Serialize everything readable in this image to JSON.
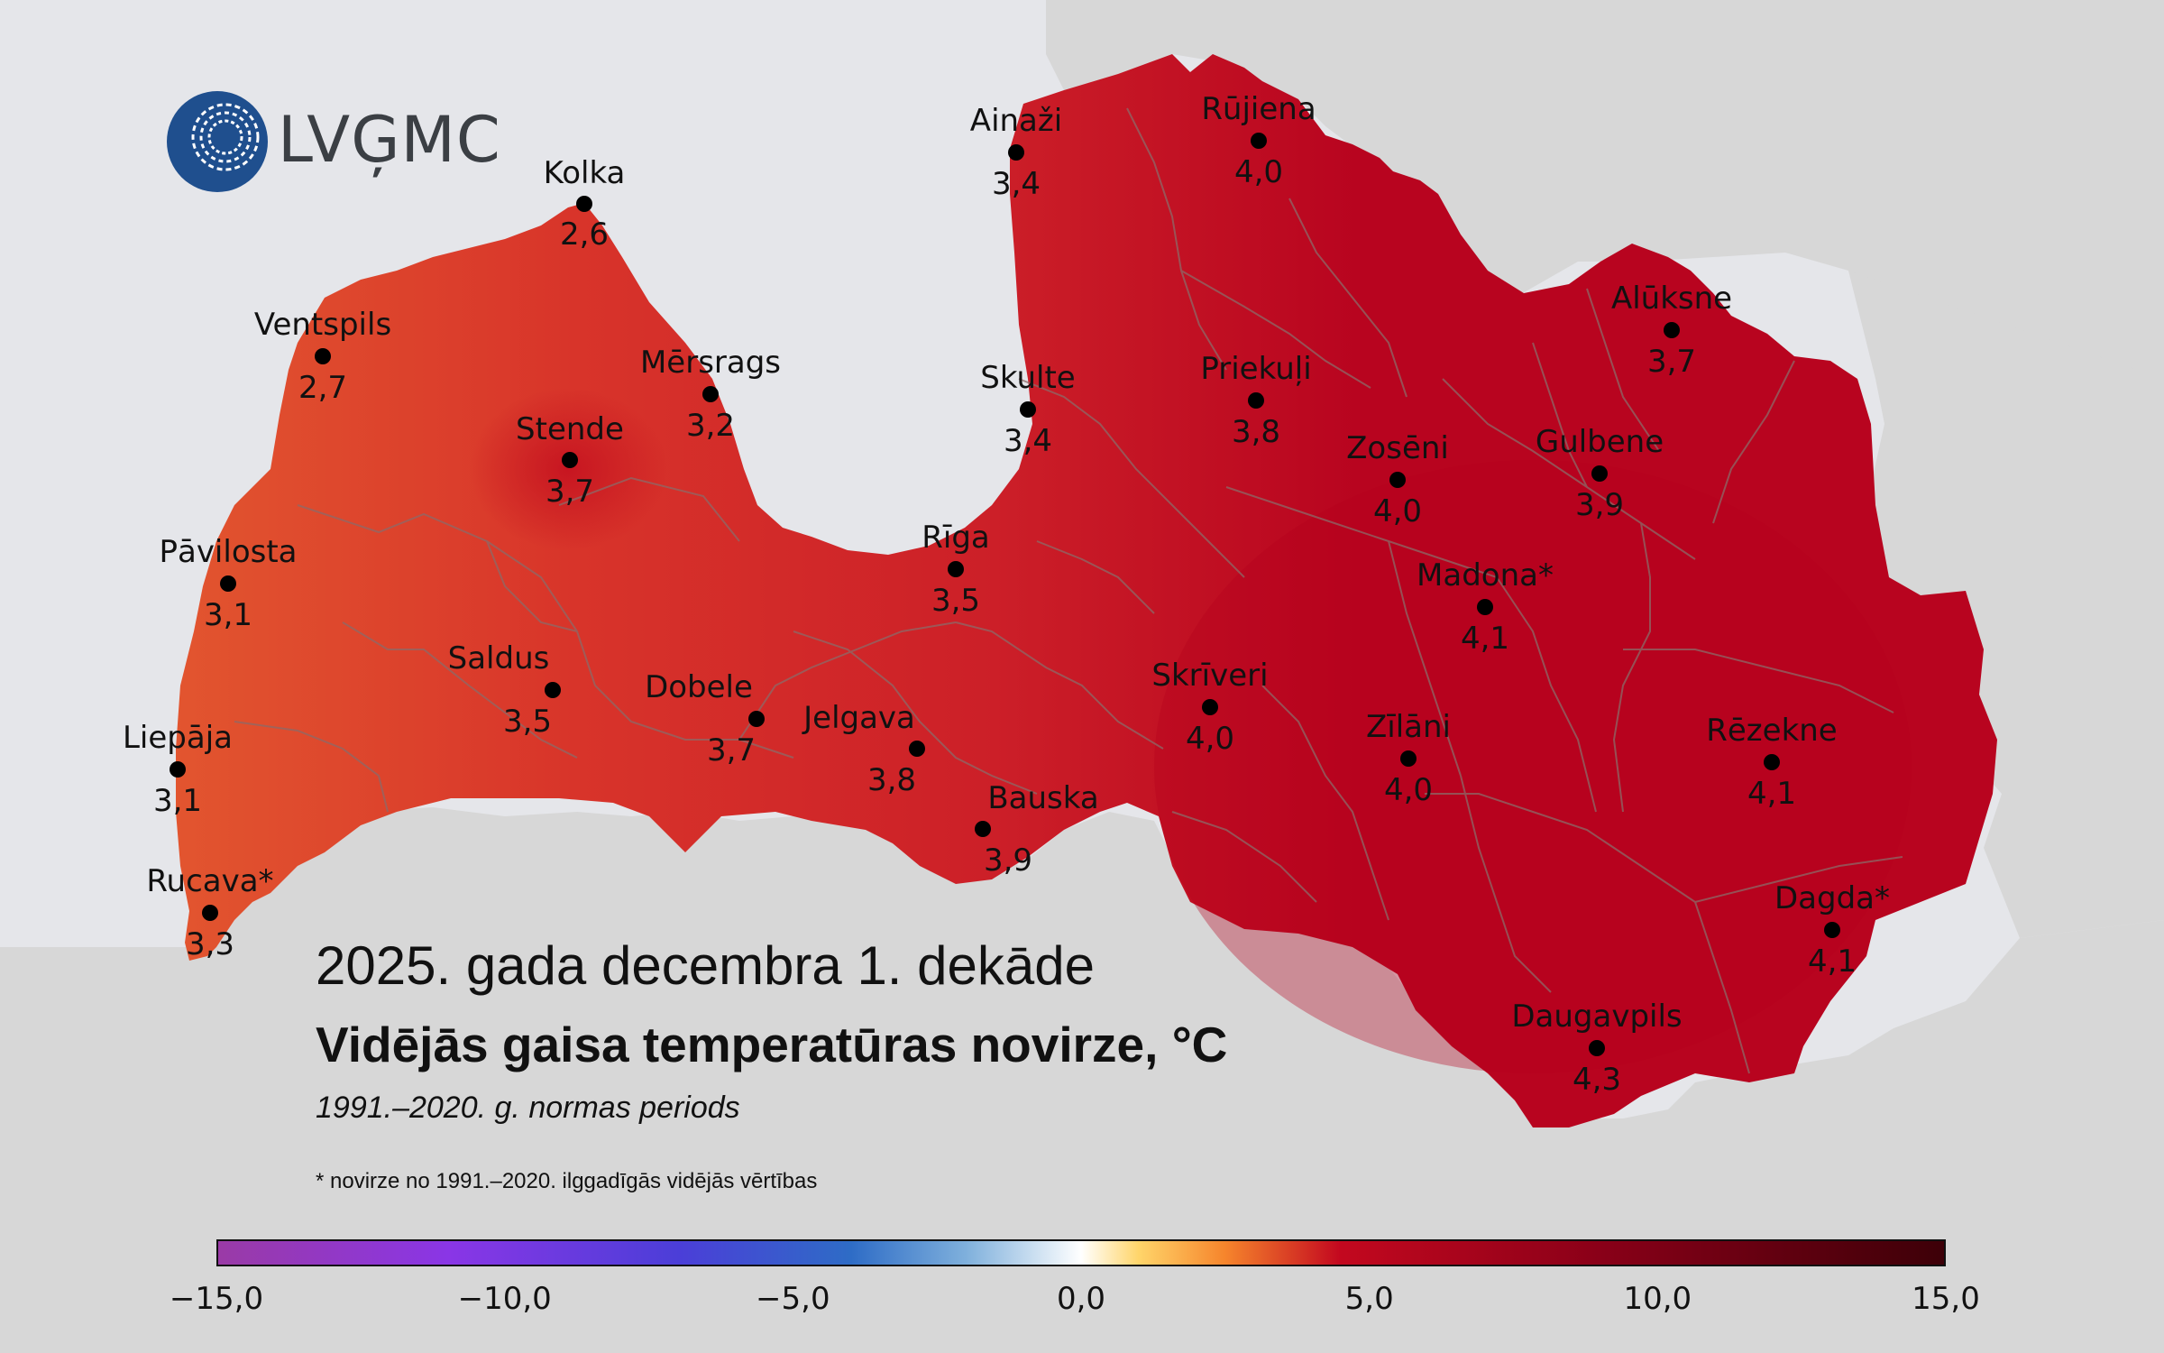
{
  "logo": {
    "text": "LVĢMC"
  },
  "title": {
    "line1": "2025. gada decembra 1. dekāde",
    "line2": "Vidējās gaisa temperatūras novirze, °C",
    "subtitle": "1991.–2020. g. normas periods",
    "footnote": "* novirze no 1991.–2020. ilggadīgās vidējās vērtības"
  },
  "colors": {
    "sea": "#e5e6ea",
    "neighbour_land": "#d7d7d7",
    "west_coast": "#e2552f",
    "kurzeme": "#d8342a",
    "central": "#cc1f28",
    "east": "#b8041f",
    "border_lines": "#8c6a68"
  },
  "stations": [
    {
      "name": "Kolka",
      "value": "2,6"
    },
    {
      "name": "Ventspils",
      "value": "2,7"
    },
    {
      "name": "Mērsrags",
      "value": "3,2"
    },
    {
      "name": "Stende",
      "value": "3,7"
    },
    {
      "name": "Pāvilosta",
      "value": "3,1"
    },
    {
      "name": "Saldus",
      "value": "3,5"
    },
    {
      "name": "Liepāja",
      "value": "3,1"
    },
    {
      "name": "Rucava*",
      "value": "3,3"
    },
    {
      "name": "Dobele",
      "value": "3,7"
    },
    {
      "name": "Jelgava",
      "value": "3,8"
    },
    {
      "name": "Bauska",
      "value": "3,9"
    },
    {
      "name": "Rīga",
      "value": "3,5"
    },
    {
      "name": "Skulte",
      "value": "3,4"
    },
    {
      "name": "Ainaži",
      "value": "3,4"
    },
    {
      "name": "Rūjiena",
      "value": "4,0"
    },
    {
      "name": "Priekuļi",
      "value": "3,8"
    },
    {
      "name": "Alūksne",
      "value": "3,7"
    },
    {
      "name": "Zosēni",
      "value": "4,0"
    },
    {
      "name": "Gulbene",
      "value": "3,9"
    },
    {
      "name": "Madona*",
      "value": "4,1"
    },
    {
      "name": "Skrīveri",
      "value": "4,0"
    },
    {
      "name": "Zīlāni",
      "value": "4,0"
    },
    {
      "name": "Rēzekne",
      "value": "4,1"
    },
    {
      "name": "Dagda*",
      "value": "4,1"
    },
    {
      "name": "Daugavpils",
      "value": "4,3"
    }
  ],
  "colorbar": {
    "min": -15.0,
    "max": 15.0,
    "tick_labels": [
      "−15,0",
      "−10,0",
      "−5,0",
      "0,0",
      "5,0",
      "10,0",
      "15,0"
    ],
    "stops": [
      {
        "value": -15,
        "color": "#9a3aa6"
      },
      {
        "value": -11,
        "color": "#8a36e6"
      },
      {
        "value": -7,
        "color": "#4b3ed8"
      },
      {
        "value": -4,
        "color": "#2e6cc6"
      },
      {
        "value": -2,
        "color": "#7fb0dc"
      },
      {
        "value": 0,
        "color": "#ffffff"
      },
      {
        "value": 1,
        "color": "#ffd56a"
      },
      {
        "value": 2.5,
        "color": "#f6852c"
      },
      {
        "value": 4.5,
        "color": "#c3081f"
      },
      {
        "value": 9,
        "color": "#8a0018"
      },
      {
        "value": 15,
        "color": "#3d0008"
      }
    ]
  }
}
